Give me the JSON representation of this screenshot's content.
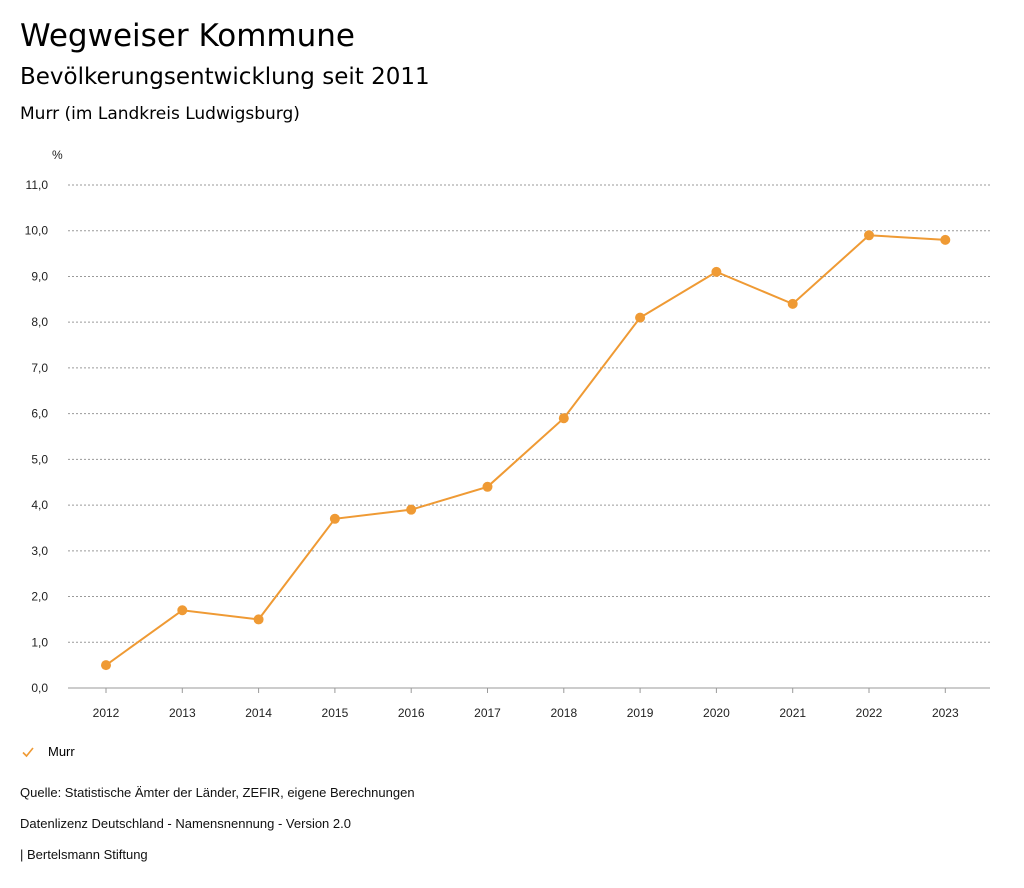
{
  "header": {
    "title": "Wegweiser Kommune",
    "subtitle": "Bevölkerungsentwicklung seit 2011",
    "region": "Murr (im Landkreis Ludwigsburg)"
  },
  "chart_data": {
    "type": "line",
    "title": "Bevölkerungsentwicklung seit 2011",
    "ylabel": "%",
    "xlabel": "",
    "x": [
      "2012",
      "2013",
      "2014",
      "2015",
      "2016",
      "2017",
      "2018",
      "2019",
      "2020",
      "2021",
      "2022",
      "2023"
    ],
    "series": [
      {
        "name": "Murr",
        "color": "#ef9a34",
        "values": [
          0.5,
          1.7,
          1.5,
          3.7,
          3.9,
          4.4,
          5.9,
          8.1,
          9.1,
          8.4,
          9.9,
          9.8
        ]
      }
    ],
    "ylim": [
      0,
      11
    ],
    "yticks": [
      "0,0",
      "1,0",
      "2,0",
      "3,0",
      "4,0",
      "5,0",
      "6,0",
      "7,0",
      "8,0",
      "9,0",
      "10,0",
      "11,0"
    ],
    "grid": true,
    "legend": "bottom-left"
  },
  "legend": {
    "label": "Murr"
  },
  "footer": {
    "source": "Quelle: Statistische Ämter der Länder, ZEFIR, eigene Berechnungen",
    "license": "Datenlizenz Deutschland - Namensnennung - Version 2.0",
    "publisher": "| Bertelsmann Stiftung"
  }
}
